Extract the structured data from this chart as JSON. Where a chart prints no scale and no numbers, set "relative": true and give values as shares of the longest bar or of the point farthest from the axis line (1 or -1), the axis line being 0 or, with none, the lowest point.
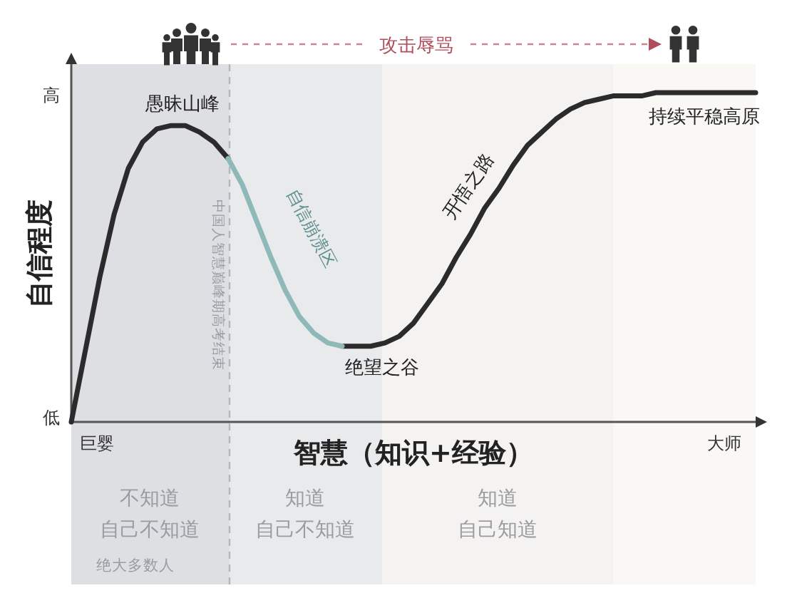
{
  "chart_data": {
    "type": "line",
    "relative": true,
    "xlabel": "智慧（知识+经验）",
    "ylabel": "自信程度",
    "categories": [
      null,
      null,
      null,
      null,
      null,
      null,
      null,
      null,
      null,
      null,
      null,
      null,
      null,
      null,
      null,
      null,
      null,
      null,
      null,
      null,
      null,
      null,
      null,
      null,
      null,
      null,
      null,
      null,
      null,
      null,
      null,
      null,
      null,
      null,
      null,
      null,
      null,
      null,
      null,
      null,
      null,
      null,
      null,
      null,
      null,
      null,
      null,
      null,
      null
    ],
    "series": [
      {
        "color": "#2b2b2b",
        "values": [
          0,
          0.22,
          0.44,
          0.63,
          0.77,
          0.85,
          0.89,
          0.9,
          0.9,
          0.88,
          0.85,
          0.8,
          null,
          null,
          null,
          null,
          null,
          null,
          null,
          0.23,
          0.23,
          0.23,
          0.24,
          0.26,
          0.3,
          0.36,
          0.42,
          0.5,
          0.57,
          0.65,
          0.71,
          0.78,
          0.84,
          0.88,
          0.92,
          0.95,
          0.97,
          0.98,
          0.99,
          0.99,
          0.99,
          1,
          1,
          1,
          1,
          1,
          1,
          1,
          1
        ]
      },
      {
        "color": "#8fb9b9",
        "values": [
          null,
          null,
          null,
          null,
          null,
          null,
          null,
          null,
          null,
          null,
          null,
          0.8,
          0.72,
          0.61,
          0.5,
          0.4,
          0.32,
          0.27,
          0.24,
          0.23,
          null,
          null,
          null,
          null,
          null,
          null,
          null,
          null,
          null,
          null,
          null,
          null,
          null,
          null,
          null,
          null,
          null,
          null,
          null,
          null,
          null,
          null,
          null,
          null,
          null,
          null,
          null,
          null,
          null
        ]
      }
    ],
    "annotations": [
      "攻击辱骂",
      "高",
      "低",
      "巨婴",
      "大师",
      "绝大多数人",
      {
        "text": "愚昧山峰",
        "y": 0.9
      },
      "自信崩溃区",
      {
        "text": "绝望之谷",
        "y": 0.23
      },
      "开悟之路",
      {
        "text": "持续平稳高原",
        "y": 1
      },
      "中国人智慧巅峰期高考结束",
      "不知道",
      "自己不知道",
      "知道",
      "自己不知道",
      "知道",
      "自己知道"
    ]
  }
}
